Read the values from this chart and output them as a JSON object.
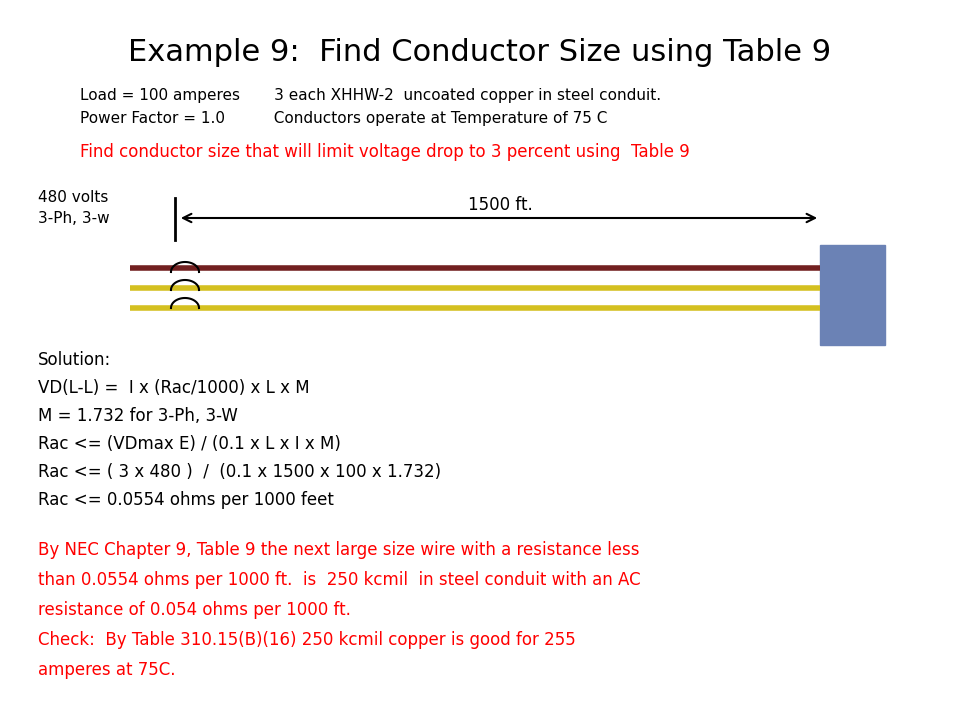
{
  "title": "Example 9:  Find Conductor Size using Table 9",
  "title_fontsize": 22,
  "bg_color": "#ffffff",
  "info_line1": "Load = 100 amperes       3 each XHHW-2  uncoated copper in steel conduit.",
  "info_line2": "Power Factor = 1.0          Conductors operate at Temperature of 75 C",
  "red_question": "Find conductor size that will limit voltage drop to 3 percent using  Table 9",
  "volts_label": "480 volts",
  "phase_label": "3-Ph, 3-w",
  "distance_label": "1500 ft.",
  "solution_lines": [
    "Solution:",
    "VD(L-L) =  I x (Rac/1000) x L x M",
    "M = 1.732 for 3-Ph, 3-W",
    "Rac <= (VDmax E) / (0.1 x L x I x M)",
    "Rac <= ( 3 x 480 )  /  (0.1 x 1500 x 100 x 1.732)",
    "Rac <= 0.0554 ohms per 1000 feet"
  ],
  "red_conclusion": [
    "By NEC Chapter 9, Table 9 the next large size wire with a resistance less",
    "than 0.0554 ohms per 1000 ft.  is  250 kcmil  in steel conduit with an AC",
    "resistance of 0.054 ohms per 1000 ft.",
    "Check:  By Table 310.15(B)(16) 250 kcmil copper is good for 255",
    "amperes at 75C."
  ],
  "box_color": "#6B82B5",
  "wire_dark_color": "#722020",
  "wire_yellow_color": "#D4C020"
}
